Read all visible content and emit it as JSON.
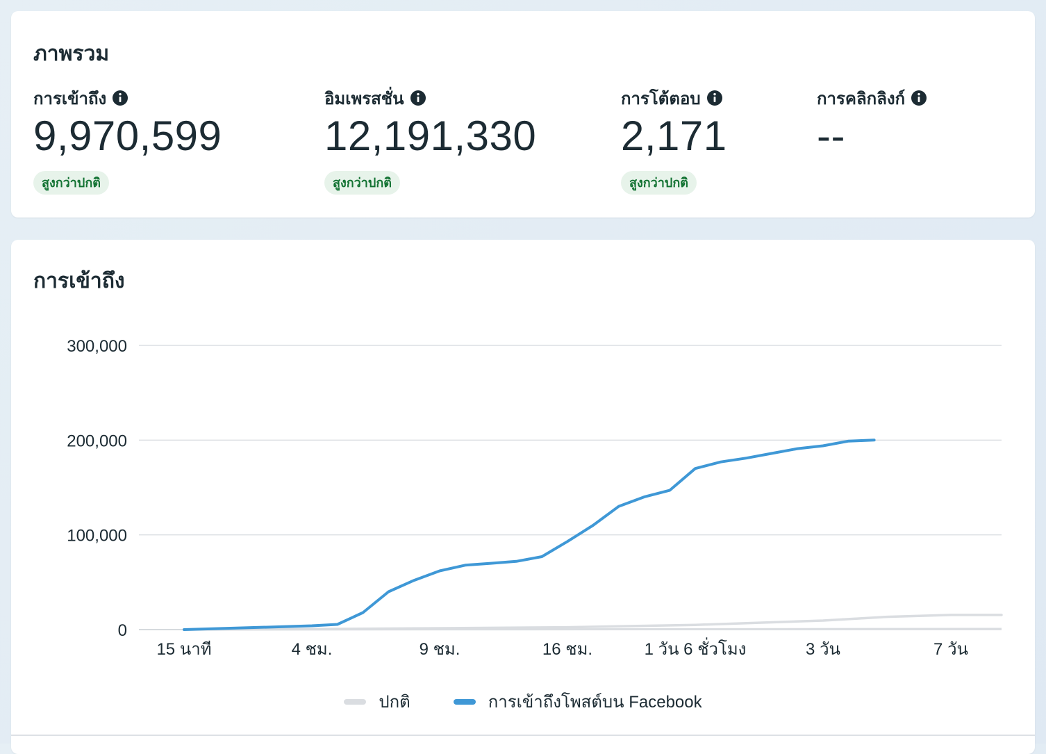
{
  "overview": {
    "title": "ภาพรวม",
    "metrics": [
      {
        "label": "การเข้าถึง",
        "value": "9,970,599",
        "badge": "สูงกว่าปกติ"
      },
      {
        "label": "อิมเพรสชั่น",
        "value": "12,191,330",
        "badge": "สูงกว่าปกติ"
      },
      {
        "label": "การโต้ตอบ",
        "value": "2,171",
        "badge": "สูงกว่าปกติ"
      },
      {
        "label": "การคลิกลิงก์",
        "value": "--"
      }
    ]
  },
  "reach_card": {
    "title": "การเข้าถึง"
  },
  "colors": {
    "accent_blue": "#3f98d6",
    "baseline_gray": "#dadde1",
    "badge_green_text": "#137333",
    "badge_green_bg": "#e7f3ea"
  },
  "icons": {
    "info": "info-icon"
  },
  "chart_data": {
    "type": "line",
    "ylim": [
      0,
      300000
    ],
    "y_ticks": [
      0,
      100000,
      200000,
      300000
    ],
    "y_tick_labels": [
      "0",
      "100,000",
      "200,000",
      "300,000"
    ],
    "x_tick_labels": [
      "15 นาที",
      "4 ชม.",
      "9 ชม.",
      "16 ชม.",
      "1 วัน 6 ชั่วโมง",
      "3 วัน",
      "7 วัน"
    ],
    "grid": true,
    "legend_position": "bottom",
    "series": [
      {
        "name": "ปกติ",
        "color": "#dadde1",
        "x": [
          0,
          1,
          2,
          3,
          4,
          5,
          5.5,
          6
        ],
        "values": [
          0,
          500,
          1500,
          2500,
          5000,
          9500,
          13500,
          15500
        ]
      },
      {
        "name": "การเข้าถึงโพสต์บน Facebook",
        "color": "#3f98d6",
        "x": [
          0,
          0.5,
          1,
          1.2,
          1.4,
          1.6,
          1.8,
          2,
          2.2,
          2.4,
          2.6,
          2.8,
          3,
          3.2,
          3.4,
          3.6,
          3.8,
          4,
          4.2,
          4.4,
          4.6,
          4.8,
          5,
          5.2,
          5.4
        ],
        "values": [
          0,
          2000,
          4000,
          5500,
          18000,
          40000,
          52000,
          62000,
          68000,
          70000,
          72000,
          77000,
          93000,
          110000,
          130000,
          140000,
          147000,
          170000,
          177000,
          181000,
          186000,
          191000,
          194000,
          199000,
          200000
        ]
      }
    ]
  }
}
